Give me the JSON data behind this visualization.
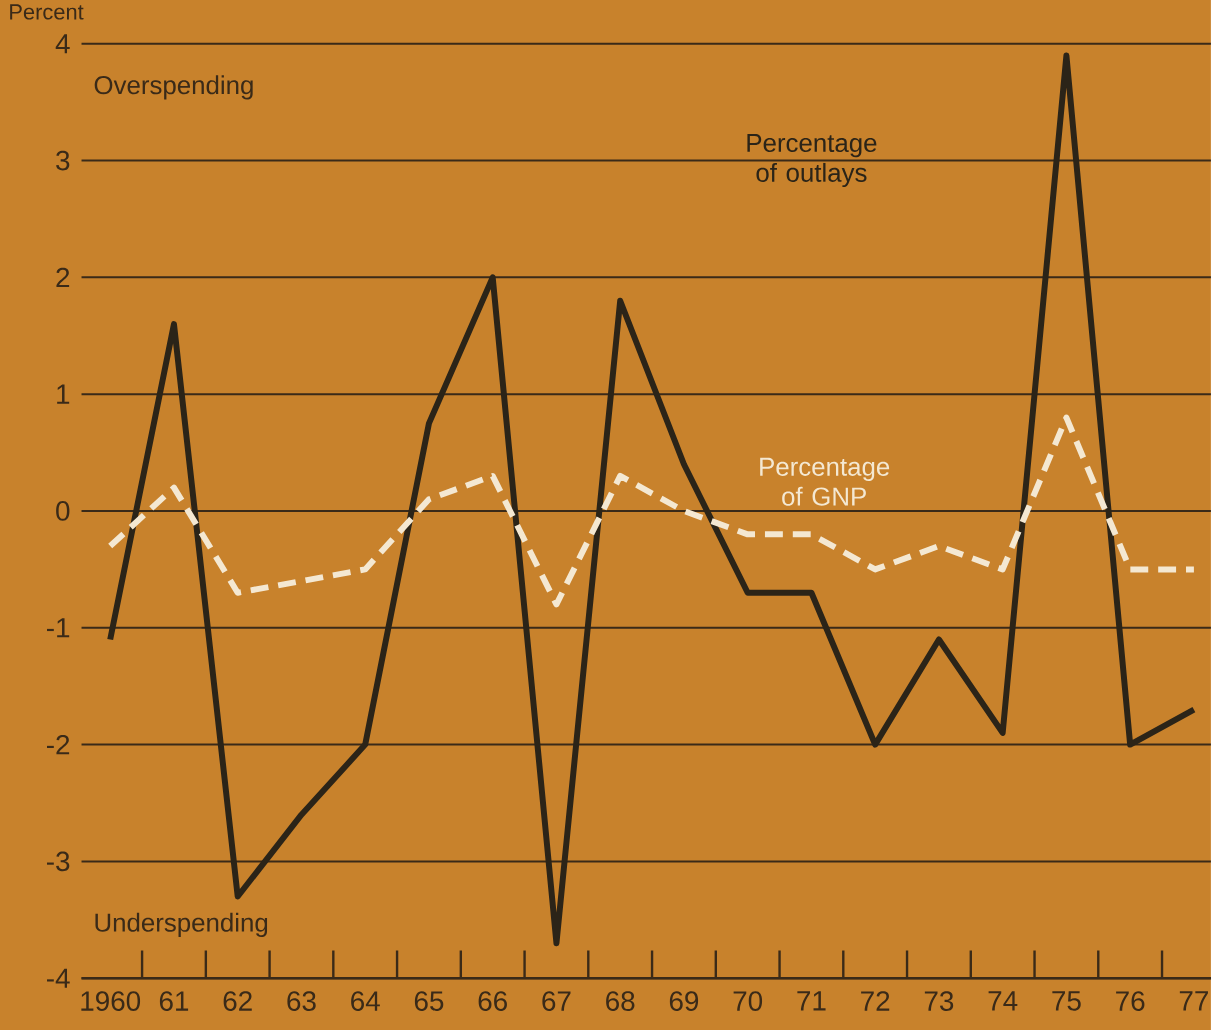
{
  "chart_data": {
    "type": "line",
    "ylabel": "Percent",
    "categories": [
      "1960",
      "61",
      "62",
      "63",
      "64",
      "65",
      "66",
      "67",
      "68",
      "69",
      "70",
      "71",
      "72",
      "73",
      "74",
      "75",
      "76",
      "77"
    ],
    "series": [
      {
        "name": "Percentage of outlays",
        "color": "#2b2418",
        "line_style": "solid",
        "values": [
          -1.1,
          1.6,
          -3.3,
          -2.6,
          -2.0,
          0.75,
          2.0,
          -3.7,
          1.8,
          0.4,
          -0.7,
          -0.7,
          -2.0,
          -1.1,
          -1.9,
          3.9,
          -2.0,
          -1.7
        ]
      },
      {
        "name": "Percentage of GNP",
        "color": "#f4e8d2",
        "line_style": "dashed",
        "values": [
          -0.3,
          0.2,
          -0.7,
          -0.6,
          -0.5,
          0.1,
          0.3,
          -0.8,
          0.3,
          0.0,
          -0.2,
          -0.2,
          -0.5,
          -0.3,
          -0.5,
          0.8,
          -0.5,
          -0.5
        ]
      }
    ],
    "ylim": [
      -4,
      4
    ],
    "yticks": [
      -4,
      -3,
      -2,
      -1,
      0,
      1,
      2,
      3,
      4
    ],
    "grid": "y",
    "marker": "none",
    "annotations": [
      "Overspending",
      "Underspending"
    ]
  }
}
